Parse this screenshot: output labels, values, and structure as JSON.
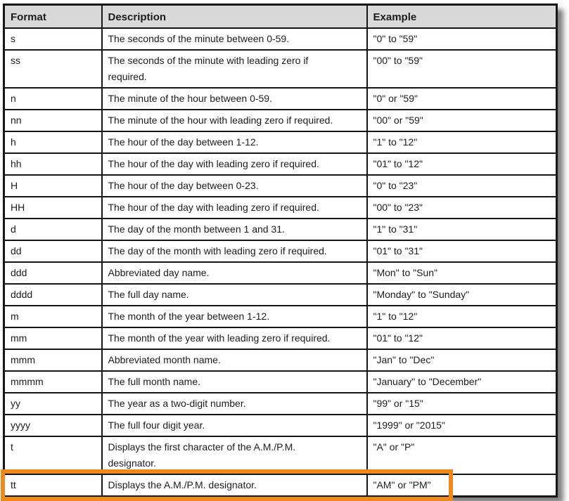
{
  "colors": {
    "accent_orange": "#EE8A1B",
    "header_bg": "#D9D9D9",
    "table_border": "#161616"
  },
  "table": {
    "columns": [
      "Format",
      "Description",
      "Example"
    ],
    "rows": [
      {
        "format": "s",
        "description": "The seconds of the minute between 0-59.",
        "example": "\"0\" to \"59\""
      },
      {
        "format": "ss",
        "description": "The seconds of the minute with leading zero if\nrequired.",
        "example": "\"00\" to \"59\""
      },
      {
        "format": "n",
        "description": "The minute of the hour between 0-59.",
        "example": "\"0\" or \"59\""
      },
      {
        "format": "nn",
        "description": "The minute of the hour with leading zero if required.",
        "example": "\"00\" or \"59\""
      },
      {
        "format": "h",
        "description": "The hour of the day between 1-12.",
        "example": "\"1\" to \"12\""
      },
      {
        "format": "hh",
        "description": "The hour of the day with leading zero if required.",
        "example": "\"01\" to \"12\""
      },
      {
        "format": "H",
        "description": "The hour of the day between 0-23.",
        "example": "\"0\" to \"23\""
      },
      {
        "format": "HH",
        "description": "The hour of the day with leading zero if required.",
        "example": "\"00\" to \"23\""
      },
      {
        "format": "d",
        "description": "The day of the month between 1 and 31.",
        "example": "\"1\" to \"31\""
      },
      {
        "format": "dd",
        "description": "The day of the month with leading zero if required.",
        "example": "\"01\" to \"31\""
      },
      {
        "format": "ddd",
        "description": "Abbreviated day name.",
        "example": "\"Mon\" to \"Sun\""
      },
      {
        "format": "dddd",
        "description": "The full day name.",
        "example": "\"Monday\" to \"Sunday\""
      },
      {
        "format": "m",
        "description": "The month of the year between 1-12.",
        "example": "\"1\" to \"12\""
      },
      {
        "format": "mm",
        "description": "The month of the year with leading zero if required.",
        "example": "\"01\" to \"12\""
      },
      {
        "format": "mmm",
        "description": "Abbreviated month name.",
        "example": "\"Jan\" to \"Dec\""
      },
      {
        "format": "mmmm",
        "description": "The full month name.",
        "example": "\"January\" to \"December\""
      },
      {
        "format": "yy",
        "description": "The year as a two-digit number.",
        "example": "\"99\" or \"15\""
      },
      {
        "format": "yyyy",
        "description": "The full four digit year.",
        "example": "\"1999\" or \"2015\""
      },
      {
        "format": "t",
        "description": "Displays the first character of the A.M./P.M.\ndesignator.",
        "example": "\"A\" or \"P\""
      },
      {
        "format": "tt",
        "description": "Displays the A.M./P.M. designator.",
        "example": "\"AM\" or \"PM\"",
        "highlighted": true
      }
    ]
  }
}
